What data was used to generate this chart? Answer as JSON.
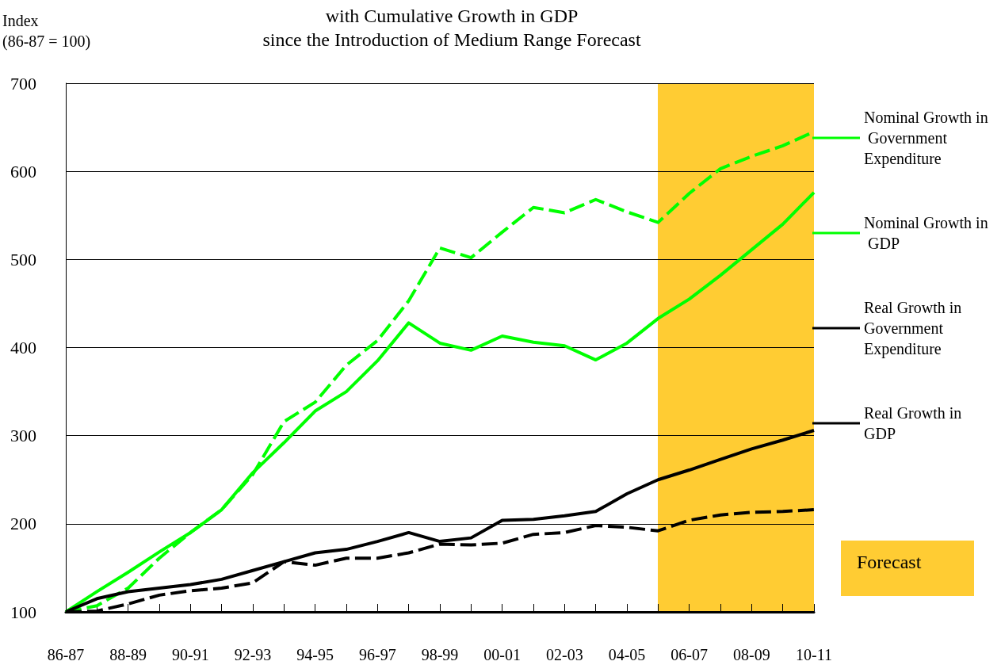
{
  "chart_data": {
    "type": "line",
    "title": "with Cumulative Growth in GDP\nsince the Introduction of Medium Range Forecast",
    "ylabel": "Index\n(86-87 = 100)",
    "categories": [
      "86-87",
      null,
      "88-89",
      null,
      "90-91",
      null,
      "92-93",
      null,
      "94-95",
      null,
      "96-97",
      null,
      "98-99",
      null,
      "00-01",
      null,
      "02-03",
      null,
      "04-05",
      null,
      "06-07",
      null,
      "08-09",
      null,
      "10-11"
    ],
    "series": [
      {
        "name": "Nominal Growth in Government Expenditure",
        "color": "#00ff00",
        "line_style": "dashed",
        "values": [
          100,
          107,
          127,
          161,
          190,
          216,
          256,
          316,
          338,
          380,
          408,
          453,
          513,
          502,
          531,
          559,
          553,
          568,
          554,
          542,
          575,
          603,
          617,
          629,
          645
        ]
      },
      {
        "name": "Nominal Growth in GDP",
        "color": "#00ff00",
        "line_style": "solid",
        "values": [
          100,
          123,
          145,
          168,
          190,
          216,
          258,
          292,
          328,
          350,
          385,
          428,
          405,
          397,
          413,
          406,
          402,
          386,
          405,
          433,
          455,
          482,
          511,
          540,
          576
        ]
      },
      {
        "name": "Real Growth in Government Expenditure",
        "color": "#000000",
        "line_style": "dashed",
        "values": [
          100,
          101,
          109,
          119,
          124,
          127,
          133,
          157,
          153,
          161,
          161,
          167,
          177,
          176,
          178,
          188,
          190,
          198,
          196,
          192,
          204,
          210,
          213,
          214,
          216
        ]
      },
      {
        "name": "Real Growth in GDP",
        "color": "#000000",
        "line_style": "solid",
        "values": [
          100,
          115,
          123,
          127,
          131,
          137,
          147,
          157,
          167,
          171,
          180,
          190,
          180,
          184,
          204,
          205,
          209,
          214,
          234,
          250,
          261,
          273,
          285,
          295,
          306
        ]
      }
    ],
    "ylim": [
      100,
      700
    ],
    "yticks": [
      100,
      200,
      300,
      400,
      500,
      600,
      700
    ],
    "grid": "y",
    "legend": "right",
    "marker": "none",
    "annotations": [
      "Forecast"
    ]
  }
}
